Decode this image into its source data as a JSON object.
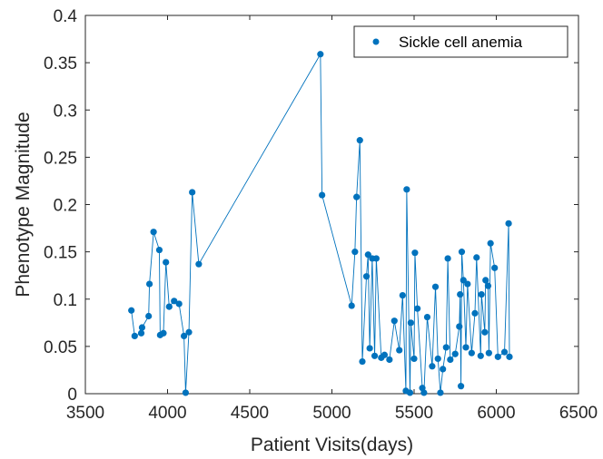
{
  "chart_data": {
    "type": "line",
    "title": "",
    "xlabel": "Patient Visits(days)",
    "ylabel": "Phenotype Magnitude",
    "xlim": [
      3500,
      6500
    ],
    "ylim": [
      0,
      0.4
    ],
    "xticks": [
      3500,
      4000,
      4500,
      5000,
      5500,
      6000,
      6500
    ],
    "yticks": [
      0,
      0.05,
      0.1,
      0.15,
      0.2,
      0.25,
      0.3,
      0.35,
      0.4
    ],
    "xtick_labels": [
      "3500",
      "4000",
      "4500",
      "5000",
      "5500",
      "6000",
      "6500"
    ],
    "ytick_labels": [
      "0",
      "0.05",
      "0.1",
      "0.15",
      "0.2",
      "0.25",
      "0.3",
      "0.35",
      "0.4"
    ],
    "grid": false,
    "legend_position": "top-right",
    "series": [
      {
        "name": "Sickle cell anemia",
        "color": "#0072BD",
        "marker": "circle",
        "points": [
          [
            3780,
            0.088
          ],
          [
            3800,
            0.061
          ],
          [
            3840,
            0.064
          ],
          [
            3845,
            0.07
          ],
          [
            3885,
            0.082
          ],
          [
            3890,
            0.116
          ],
          [
            3915,
            0.171
          ],
          [
            3950,
            0.152
          ],
          [
            3955,
            0.062
          ],
          [
            3975,
            0.064
          ],
          [
            3990,
            0.139
          ],
          [
            4010,
            0.092
          ],
          [
            4040,
            0.098
          ],
          [
            4070,
            0.095
          ],
          [
            4100,
            0.061
          ],
          [
            4110,
            0.001
          ],
          [
            4130,
            0.065
          ],
          [
            4150,
            0.213
          ],
          [
            4190,
            0.137
          ],
          [
            4930,
            0.359
          ],
          [
            4940,
            0.21
          ],
          [
            5120,
            0.093
          ],
          [
            5140,
            0.15
          ],
          [
            5150,
            0.208
          ],
          [
            5170,
            0.268
          ],
          [
            5185,
            0.034
          ],
          [
            5210,
            0.124
          ],
          [
            5220,
            0.147
          ],
          [
            5230,
            0.048
          ],
          [
            5245,
            0.143
          ],
          [
            5260,
            0.04
          ],
          [
            5270,
            0.143
          ],
          [
            5300,
            0.038
          ],
          [
            5320,
            0.041
          ],
          [
            5350,
            0.036
          ],
          [
            5380,
            0.077
          ],
          [
            5410,
            0.046
          ],
          [
            5430,
            0.104
          ],
          [
            5450,
            0.003
          ],
          [
            5455,
            0.216
          ],
          [
            5475,
            0.001
          ],
          [
            5480,
            0.075
          ],
          [
            5500,
            0.037
          ],
          [
            5505,
            0.149
          ],
          [
            5520,
            0.09
          ],
          [
            5550,
            0.006
          ],
          [
            5560,
            0.001
          ],
          [
            5580,
            0.081
          ],
          [
            5610,
            0.029
          ],
          [
            5630,
            0.113
          ],
          [
            5645,
            0.037
          ],
          [
            5660,
            0.001
          ],
          [
            5675,
            0.026
          ],
          [
            5695,
            0.049
          ],
          [
            5705,
            0.143
          ],
          [
            5720,
            0.036
          ],
          [
            5750,
            0.042
          ],
          [
            5775,
            0.071
          ],
          [
            5780,
            0.105
          ],
          [
            5785,
            0.008
          ],
          [
            5790,
            0.15
          ],
          [
            5800,
            0.12
          ],
          [
            5815,
            0.049
          ],
          [
            5825,
            0.116
          ],
          [
            5850,
            0.043
          ],
          [
            5870,
            0.085
          ],
          [
            5880,
            0.144
          ],
          [
            5905,
            0.04
          ],
          [
            5910,
            0.105
          ],
          [
            5930,
            0.065
          ],
          [
            5935,
            0.12
          ],
          [
            5950,
            0.114
          ],
          [
            5955,
            0.043
          ],
          [
            5965,
            0.159
          ],
          [
            5990,
            0.133
          ],
          [
            6010,
            0.039
          ],
          [
            6050,
            0.044
          ],
          [
            6075,
            0.18
          ],
          [
            6080,
            0.039
          ]
        ]
      }
    ]
  }
}
